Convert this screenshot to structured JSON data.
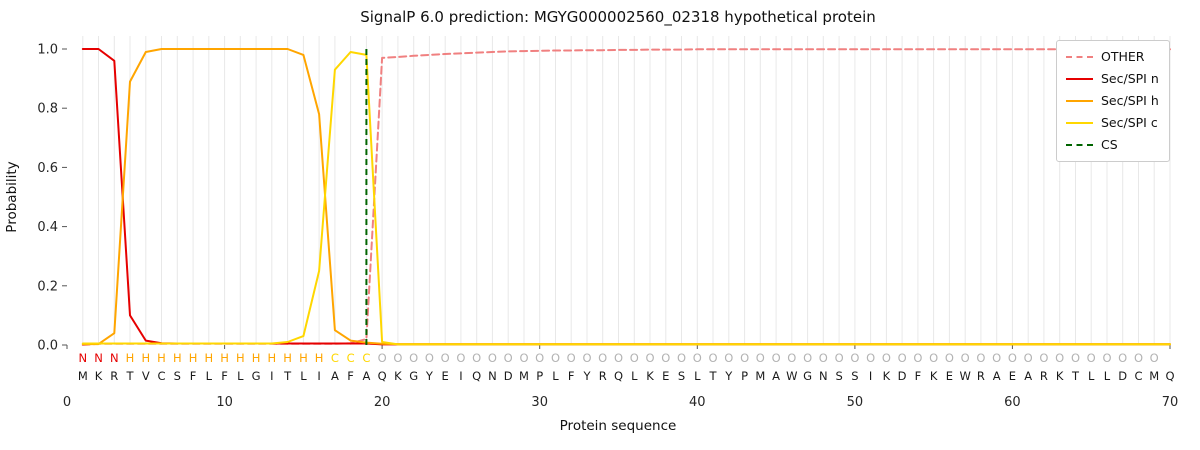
{
  "chart_data": {
    "type": "line",
    "title": "SignalP 6.0 prediction: MGYG000002560_02318 hypothetical protein",
    "xlabel": "Protein sequence",
    "ylabel": "Probability",
    "xlim": [
      0,
      70
    ],
    "ylim": [
      0,
      1.05
    ],
    "xticks": [
      0,
      10,
      20,
      30,
      40,
      50,
      60,
      70
    ],
    "ytick_values": [
      0.0,
      0.2,
      0.4,
      0.6,
      0.8,
      1.0
    ],
    "ytick_labels": [
      "0.0",
      "0.2",
      "0.4",
      "0.6",
      "0.8",
      "1.0"
    ],
    "grid": "vertical-line-per-residue",
    "grid_color": "#e8e8e8",
    "legend_position": "upper right",
    "sequence": "MKRTVCSFLFLGITLIAFAQKGYEIQNDMPLFYRQLKESLTYPMAWGNSSIKDFKEWRAEARKTLLDCMQ",
    "region_labels": "NNNHHHHHHHHHHHHHCCCOOOOOOOOOOOOOOOOOOOOOOOOOOOOOOOOOOOOOOOOOOOOOOOOOO",
    "region_colors": {
      "N": "#e60000",
      "H": "#ffa500",
      "C": "#ffd700",
      "O": "#b3b3b3"
    },
    "sequence_color": "#1a1a1a",
    "cs_position": 19,
    "cs": {
      "name": "CS",
      "color": "#006400",
      "dash": true
    },
    "series": [
      {
        "name": "OTHER",
        "color": "#f08080",
        "dash": true,
        "values": [
          0.0,
          0.004,
          0.004,
          0.004,
          0.004,
          0.004,
          0.004,
          0.004,
          0.004,
          0.004,
          0.004,
          0.004,
          0.004,
          0.004,
          0.004,
          0.004,
          0.004,
          0.006,
          0.02,
          0.97,
          0.973,
          0.977,
          0.98,
          0.983,
          0.985,
          0.988,
          0.99,
          0.992,
          0.993,
          0.994,
          0.995,
          0.995,
          0.996,
          0.996,
          0.997,
          0.997,
          0.998,
          0.998,
          0.998,
          0.999,
          0.999,
          0.999,
          0.999,
          0.999,
          0.999,
          0.999,
          0.999,
          0.999,
          0.999,
          0.999,
          0.999,
          0.999,
          0.999,
          0.999,
          0.999,
          0.999,
          0.999,
          0.999,
          0.999,
          0.999,
          0.999,
          0.999,
          0.999,
          0.999,
          0.999,
          0.999,
          0.999,
          0.999,
          0.999,
          0.999
        ]
      },
      {
        "name": "Sec/SPI n",
        "color": "#e60000",
        "dash": false,
        "values": [
          1.0,
          1.0,
          0.96,
          0.1,
          0.015,
          0.006,
          0.005,
          0.005,
          0.005,
          0.005,
          0.005,
          0.005,
          0.005,
          0.005,
          0.005,
          0.005,
          0.005,
          0.005,
          0.005,
          0.002,
          0.002,
          0.002,
          0.002,
          0.002,
          0.002,
          0.002,
          0.002,
          0.002,
          0.002,
          0.002,
          0.002,
          0.002,
          0.002,
          0.002,
          0.002,
          0.002,
          0.002,
          0.002,
          0.002,
          0.002,
          0.002,
          0.002,
          0.002,
          0.002,
          0.002,
          0.002,
          0.002,
          0.002,
          0.002,
          0.002,
          0.002,
          0.002,
          0.002,
          0.002,
          0.002,
          0.002,
          0.002,
          0.002,
          0.002,
          0.002,
          0.002,
          0.002,
          0.002,
          0.002,
          0.002,
          0.002,
          0.002,
          0.002,
          0.002,
          0.002
        ]
      },
      {
        "name": "Sec/SPI h",
        "color": "#ffa500",
        "dash": false,
        "values": [
          0.003,
          0.003,
          0.04,
          0.89,
          0.99,
          1.0,
          1.0,
          1.0,
          1.0,
          1.0,
          1.0,
          1.0,
          1.0,
          1.0,
          0.98,
          0.78,
          0.05,
          0.015,
          0.008,
          0.004,
          0.003,
          0.003,
          0.003,
          0.003,
          0.003,
          0.003,
          0.003,
          0.003,
          0.003,
          0.003,
          0.003,
          0.003,
          0.003,
          0.003,
          0.003,
          0.003,
          0.003,
          0.003,
          0.003,
          0.003,
          0.003,
          0.003,
          0.003,
          0.003,
          0.003,
          0.003,
          0.003,
          0.003,
          0.003,
          0.003,
          0.003,
          0.003,
          0.003,
          0.003,
          0.003,
          0.003,
          0.003,
          0.003,
          0.003,
          0.003,
          0.003,
          0.003,
          0.003,
          0.003,
          0.003,
          0.003,
          0.003,
          0.003,
          0.003,
          0.003
        ]
      },
      {
        "name": "Sec/SPI c",
        "color": "#ffd700",
        "dash": false,
        "values": [
          0.005,
          0.005,
          0.005,
          0.005,
          0.005,
          0.005,
          0.005,
          0.005,
          0.005,
          0.005,
          0.005,
          0.005,
          0.005,
          0.01,
          0.03,
          0.25,
          0.93,
          0.99,
          0.98,
          0.01,
          0.002,
          0.002,
          0.002,
          0.002,
          0.002,
          0.002,
          0.002,
          0.002,
          0.002,
          0.002,
          0.002,
          0.002,
          0.002,
          0.002,
          0.002,
          0.002,
          0.002,
          0.002,
          0.002,
          0.002,
          0.002,
          0.002,
          0.002,
          0.002,
          0.002,
          0.002,
          0.002,
          0.002,
          0.002,
          0.002,
          0.002,
          0.002,
          0.002,
          0.002,
          0.002,
          0.002,
          0.002,
          0.002,
          0.002,
          0.002,
          0.002,
          0.002,
          0.002,
          0.002,
          0.002,
          0.002,
          0.002,
          0.002,
          0.002,
          0.002
        ]
      }
    ]
  }
}
